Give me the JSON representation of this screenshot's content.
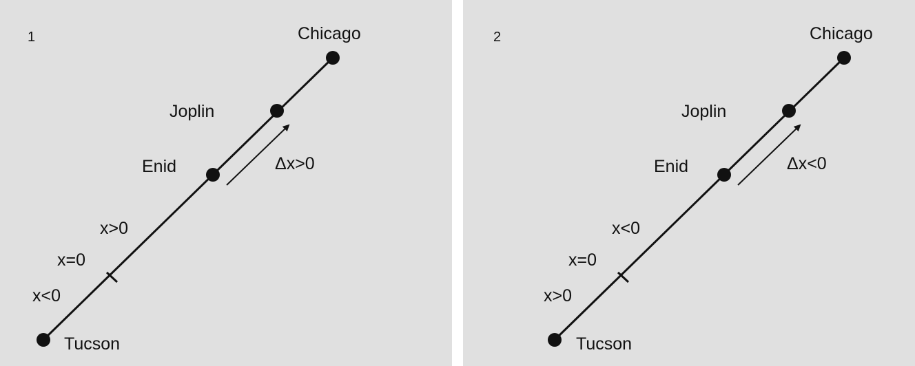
{
  "panels": [
    {
      "number": "1",
      "cities": {
        "top": "Chicago",
        "upper": "Joplin",
        "middle": "Enid",
        "bottom": "Tucson"
      },
      "axis": {
        "upper_label": "x>0",
        "origin_label": "x=0",
        "lower_label": "x<0"
      },
      "displacement": {
        "symbol": "Δ",
        "label": "x>0"
      }
    },
    {
      "number": "2",
      "cities": {
        "top": "Chicago",
        "upper": "Joplin",
        "middle": "Enid",
        "bottom": "Tucson"
      },
      "axis": {
        "upper_label": "x<0",
        "origin_label": "x=0",
        "lower_label": "x>0"
      },
      "displacement": {
        "symbol": "Δ",
        "label": "x<0"
      }
    }
  ]
}
